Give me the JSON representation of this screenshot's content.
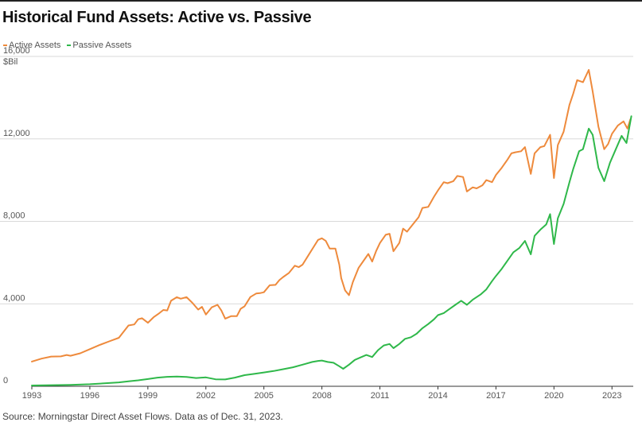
{
  "header": {
    "title": "Historical Fund Assets: Active vs. Passive"
  },
  "legend": {
    "active_label": "Active Assets",
    "passive_label": "Passive Assets"
  },
  "footer": {
    "source": "Source: Morningstar Direct Asset Flows. Data as of Dec. 31, 2023."
  },
  "chart_data": {
    "type": "line",
    "title": "Historical Fund Assets: Active vs. Passive",
    "y_unit": "$Bil",
    "ylim": [
      0,
      16000
    ],
    "y_ticks": [
      0,
      4000,
      8000,
      12000,
      16000
    ],
    "y_tick_labels": [
      "0",
      "4,000",
      "8,000",
      "12,000",
      "16,000"
    ],
    "xlim": [
      1993,
      2024.1
    ],
    "x_ticks": [
      1993,
      1996,
      1999,
      2002,
      2005,
      2008,
      2011,
      2014,
      2017,
      2020,
      2023
    ],
    "x_tick_labels": [
      "1993",
      "1996",
      "1999",
      "2002",
      "2005",
      "2008",
      "2011",
      "2014",
      "2017",
      "2020",
      "2023"
    ],
    "grid": "horizontal",
    "legend_position": "top-left",
    "colors": {
      "active": "#ee8a3c",
      "passive": "#2fb84a"
    },
    "series": [
      {
        "name": "Active Assets",
        "color": "#ee8a3c",
        "points": [
          [
            1993.0,
            1200
          ],
          [
            1993.5,
            1340
          ],
          [
            1994.0,
            1440
          ],
          [
            1994.5,
            1450
          ],
          [
            1994.8,
            1520
          ],
          [
            1995.0,
            1480
          ],
          [
            1995.5,
            1600
          ],
          [
            1996.0,
            1800
          ],
          [
            1996.5,
            2000
          ],
          [
            1997.0,
            2180
          ],
          [
            1997.5,
            2350
          ],
          [
            1998.0,
            2950
          ],
          [
            1998.3,
            3000
          ],
          [
            1998.5,
            3250
          ],
          [
            1998.7,
            3300
          ],
          [
            1999.0,
            3080
          ],
          [
            1999.3,
            3350
          ],
          [
            1999.6,
            3550
          ],
          [
            1999.8,
            3700
          ],
          [
            2000.0,
            3680
          ],
          [
            2000.2,
            4150
          ],
          [
            2000.5,
            4320
          ],
          [
            2000.7,
            4250
          ],
          [
            2001.0,
            4320
          ],
          [
            2001.3,
            4050
          ],
          [
            2001.6,
            3720
          ],
          [
            2001.8,
            3850
          ],
          [
            2002.0,
            3480
          ],
          [
            2002.3,
            3830
          ],
          [
            2002.6,
            3950
          ],
          [
            2002.8,
            3680
          ],
          [
            2003.0,
            3280
          ],
          [
            2003.3,
            3400
          ],
          [
            2003.6,
            3400
          ],
          [
            2003.8,
            3760
          ],
          [
            2004.0,
            3880
          ],
          [
            2004.3,
            4330
          ],
          [
            2004.6,
            4500
          ],
          [
            2004.8,
            4520
          ],
          [
            2005.0,
            4560
          ],
          [
            2005.3,
            4900
          ],
          [
            2005.6,
            4920
          ],
          [
            2005.8,
            5150
          ],
          [
            2006.0,
            5300
          ],
          [
            2006.3,
            5500
          ],
          [
            2006.6,
            5850
          ],
          [
            2006.8,
            5780
          ],
          [
            2007.0,
            5900
          ],
          [
            2007.3,
            6350
          ],
          [
            2007.6,
            6800
          ],
          [
            2007.8,
            7100
          ],
          [
            2008.0,
            7180
          ],
          [
            2008.2,
            7050
          ],
          [
            2008.4,
            6680
          ],
          [
            2008.7,
            6680
          ],
          [
            2008.9,
            5900
          ],
          [
            2009.0,
            5250
          ],
          [
            2009.2,
            4650
          ],
          [
            2009.4,
            4420
          ],
          [
            2009.6,
            5050
          ],
          [
            2009.9,
            5750
          ],
          [
            2010.2,
            6150
          ],
          [
            2010.4,
            6420
          ],
          [
            2010.6,
            6050
          ],
          [
            2010.8,
            6550
          ],
          [
            2011.0,
            6950
          ],
          [
            2011.3,
            7350
          ],
          [
            2011.5,
            7400
          ],
          [
            2011.7,
            6550
          ],
          [
            2012.0,
            6950
          ],
          [
            2012.2,
            7650
          ],
          [
            2012.4,
            7500
          ],
          [
            2012.7,
            7850
          ],
          [
            2013.0,
            8200
          ],
          [
            2013.2,
            8650
          ],
          [
            2013.5,
            8700
          ],
          [
            2013.8,
            9200
          ],
          [
            2014.0,
            9500
          ],
          [
            2014.3,
            9900
          ],
          [
            2014.5,
            9850
          ],
          [
            2014.8,
            9950
          ],
          [
            2015.0,
            10200
          ],
          [
            2015.3,
            10150
          ],
          [
            2015.5,
            9450
          ],
          [
            2015.8,
            9650
          ],
          [
            2016.0,
            9600
          ],
          [
            2016.3,
            9750
          ],
          [
            2016.5,
            10000
          ],
          [
            2016.8,
            9900
          ],
          [
            2017.0,
            10250
          ],
          [
            2017.3,
            10600
          ],
          [
            2017.6,
            11000
          ],
          [
            2017.8,
            11300
          ],
          [
            2018.0,
            11350
          ],
          [
            2018.3,
            11400
          ],
          [
            2018.5,
            11600
          ],
          [
            2018.8,
            10300
          ],
          [
            2019.0,
            11300
          ],
          [
            2019.3,
            11600
          ],
          [
            2019.5,
            11650
          ],
          [
            2019.8,
            12200
          ],
          [
            2020.0,
            10100
          ],
          [
            2020.2,
            11700
          ],
          [
            2020.5,
            12350
          ],
          [
            2020.8,
            13650
          ],
          [
            2021.0,
            14200
          ],
          [
            2021.2,
            14850
          ],
          [
            2021.5,
            14750
          ],
          [
            2021.8,
            15350
          ],
          [
            2022.0,
            14300
          ],
          [
            2022.3,
            12600
          ],
          [
            2022.6,
            11500
          ],
          [
            2022.8,
            11750
          ],
          [
            2023.0,
            12250
          ],
          [
            2023.3,
            12650
          ],
          [
            2023.6,
            12850
          ],
          [
            2023.8,
            12500
          ],
          [
            2023.95,
            12950
          ]
        ]
      },
      {
        "name": "Passive Assets",
        "color": "#2fb84a",
        "points": [
          [
            1993.0,
            40
          ],
          [
            1994.0,
            55
          ],
          [
            1995.0,
            70
          ],
          [
            1996.0,
            100
          ],
          [
            1997.0,
            160
          ],
          [
            1997.5,
            190
          ],
          [
            1998.0,
            240
          ],
          [
            1998.5,
            290
          ],
          [
            1999.0,
            350
          ],
          [
            1999.5,
            420
          ],
          [
            2000.0,
            460
          ],
          [
            2000.5,
            470
          ],
          [
            2001.0,
            450
          ],
          [
            2001.5,
            400
          ],
          [
            2002.0,
            430
          ],
          [
            2002.5,
            340
          ],
          [
            2003.0,
            330
          ],
          [
            2003.5,
            420
          ],
          [
            2004.0,
            540
          ],
          [
            2004.5,
            600
          ],
          [
            2005.0,
            670
          ],
          [
            2005.5,
            740
          ],
          [
            2006.0,
            830
          ],
          [
            2006.5,
            920
          ],
          [
            2007.0,
            1050
          ],
          [
            2007.5,
            1180
          ],
          [
            2007.8,
            1230
          ],
          [
            2008.0,
            1250
          ],
          [
            2008.3,
            1180
          ],
          [
            2008.6,
            1140
          ],
          [
            2008.9,
            970
          ],
          [
            2009.1,
            850
          ],
          [
            2009.4,
            1050
          ],
          [
            2009.7,
            1280
          ],
          [
            2010.0,
            1400
          ],
          [
            2010.3,
            1520
          ],
          [
            2010.6,
            1420
          ],
          [
            2010.9,
            1750
          ],
          [
            2011.2,
            1980
          ],
          [
            2011.5,
            2050
          ],
          [
            2011.7,
            1850
          ],
          [
            2012.0,
            2050
          ],
          [
            2012.3,
            2300
          ],
          [
            2012.6,
            2380
          ],
          [
            2012.9,
            2550
          ],
          [
            2013.2,
            2820
          ],
          [
            2013.5,
            3020
          ],
          [
            2013.8,
            3250
          ],
          [
            2014.0,
            3450
          ],
          [
            2014.3,
            3550
          ],
          [
            2014.6,
            3750
          ],
          [
            2014.9,
            3950
          ],
          [
            2015.2,
            4150
          ],
          [
            2015.5,
            3950
          ],
          [
            2015.8,
            4200
          ],
          [
            2016.2,
            4450
          ],
          [
            2016.5,
            4700
          ],
          [
            2016.8,
            5100
          ],
          [
            2017.0,
            5350
          ],
          [
            2017.3,
            5700
          ],
          [
            2017.6,
            6100
          ],
          [
            2017.9,
            6500
          ],
          [
            2018.2,
            6700
          ],
          [
            2018.5,
            7050
          ],
          [
            2018.8,
            6400
          ],
          [
            2019.0,
            7300
          ],
          [
            2019.3,
            7600
          ],
          [
            2019.6,
            7850
          ],
          [
            2019.8,
            8350
          ],
          [
            2020.0,
            6900
          ],
          [
            2020.2,
            8150
          ],
          [
            2020.5,
            8850
          ],
          [
            2020.8,
            9900
          ],
          [
            2021.0,
            10550
          ],
          [
            2021.3,
            11400
          ],
          [
            2021.5,
            11500
          ],
          [
            2021.8,
            12500
          ],
          [
            2022.0,
            12200
          ],
          [
            2022.3,
            10600
          ],
          [
            2022.6,
            9950
          ],
          [
            2022.9,
            10850
          ],
          [
            2023.2,
            11500
          ],
          [
            2023.5,
            12150
          ],
          [
            2023.75,
            11800
          ],
          [
            2024.0,
            13100
          ]
        ]
      }
    ]
  }
}
